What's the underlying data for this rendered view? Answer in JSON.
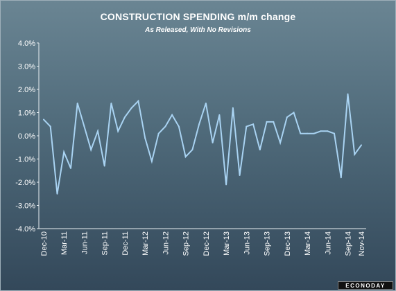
{
  "chart_data": {
    "type": "line",
    "title": "CONSTRUCTION SPENDING m/m change",
    "subtitle": "As Released, With No Revisions",
    "xlabel": "",
    "ylabel": "",
    "ylim": [
      -4,
      4
    ],
    "yticks": [
      "4.0%",
      "3.0%",
      "2.0%",
      "1.0%",
      "0.0%",
      "-1.0%",
      "-2.0%",
      "-3.0%",
      "-4.0%"
    ],
    "grid": false,
    "series_color": "#a9d3f2",
    "x": [
      "Dec-10",
      "Jan-11",
      "Feb-11",
      "Mar-11",
      "Apr-11",
      "May-11",
      "Jun-11",
      "Jul-11",
      "Aug-11",
      "Sep-11",
      "Oct-11",
      "Nov-11",
      "Dec-11",
      "Jan-12",
      "Feb-12",
      "Mar-12",
      "Apr-12",
      "May-12",
      "Jun-12",
      "Jul-12",
      "Aug-12",
      "Sep-12",
      "Oct-12",
      "Nov-12",
      "Dec-12",
      "Jan-13",
      "Feb-13",
      "Mar-13",
      "Apr-13",
      "May-13",
      "Jun-13",
      "Jul-13",
      "Aug-13",
      "Sep-13",
      "Oct-13",
      "Nov-13",
      "Dec-13",
      "Jan-14",
      "Feb-14",
      "Mar-14",
      "Apr-14",
      "May-14",
      "Jun-14",
      "Jul-14",
      "Aug-14",
      "Sep-14",
      "Oct-14",
      "Nov-14"
    ],
    "xtick_labels": [
      "Dec-10",
      "Mar-11",
      "Jun-11",
      "Sep-11",
      "Dec-11",
      "Mar-12",
      "Jun-12",
      "Sep-12",
      "Dec-12",
      "Mar-13",
      "Jun-13",
      "Sep-13",
      "Dec-13",
      "Mar-14",
      "Jun-14",
      "Sep-14",
      "Nov-14"
    ],
    "values": [
      0.7,
      0.4,
      -2.5,
      -0.7,
      -1.4,
      1.4,
      0.4,
      -0.6,
      0.2,
      -1.3,
      1.4,
      0.2,
      0.8,
      1.2,
      1.5,
      -0.1,
      -1.1,
      0.1,
      0.4,
      0.9,
      0.4,
      -0.9,
      -0.6,
      0.5,
      1.4,
      -0.3,
      0.9,
      -2.1,
      1.2,
      -1.7,
      0.4,
      0.5,
      -0.6,
      0.6,
      0.6,
      -0.3,
      0.8,
      1.0,
      0.1,
      0.1,
      0.1,
      0.2,
      0.2,
      0.1,
      -1.8,
      1.8,
      -0.8,
      -0.4
    ]
  },
  "logo_text": "ECONODAY"
}
